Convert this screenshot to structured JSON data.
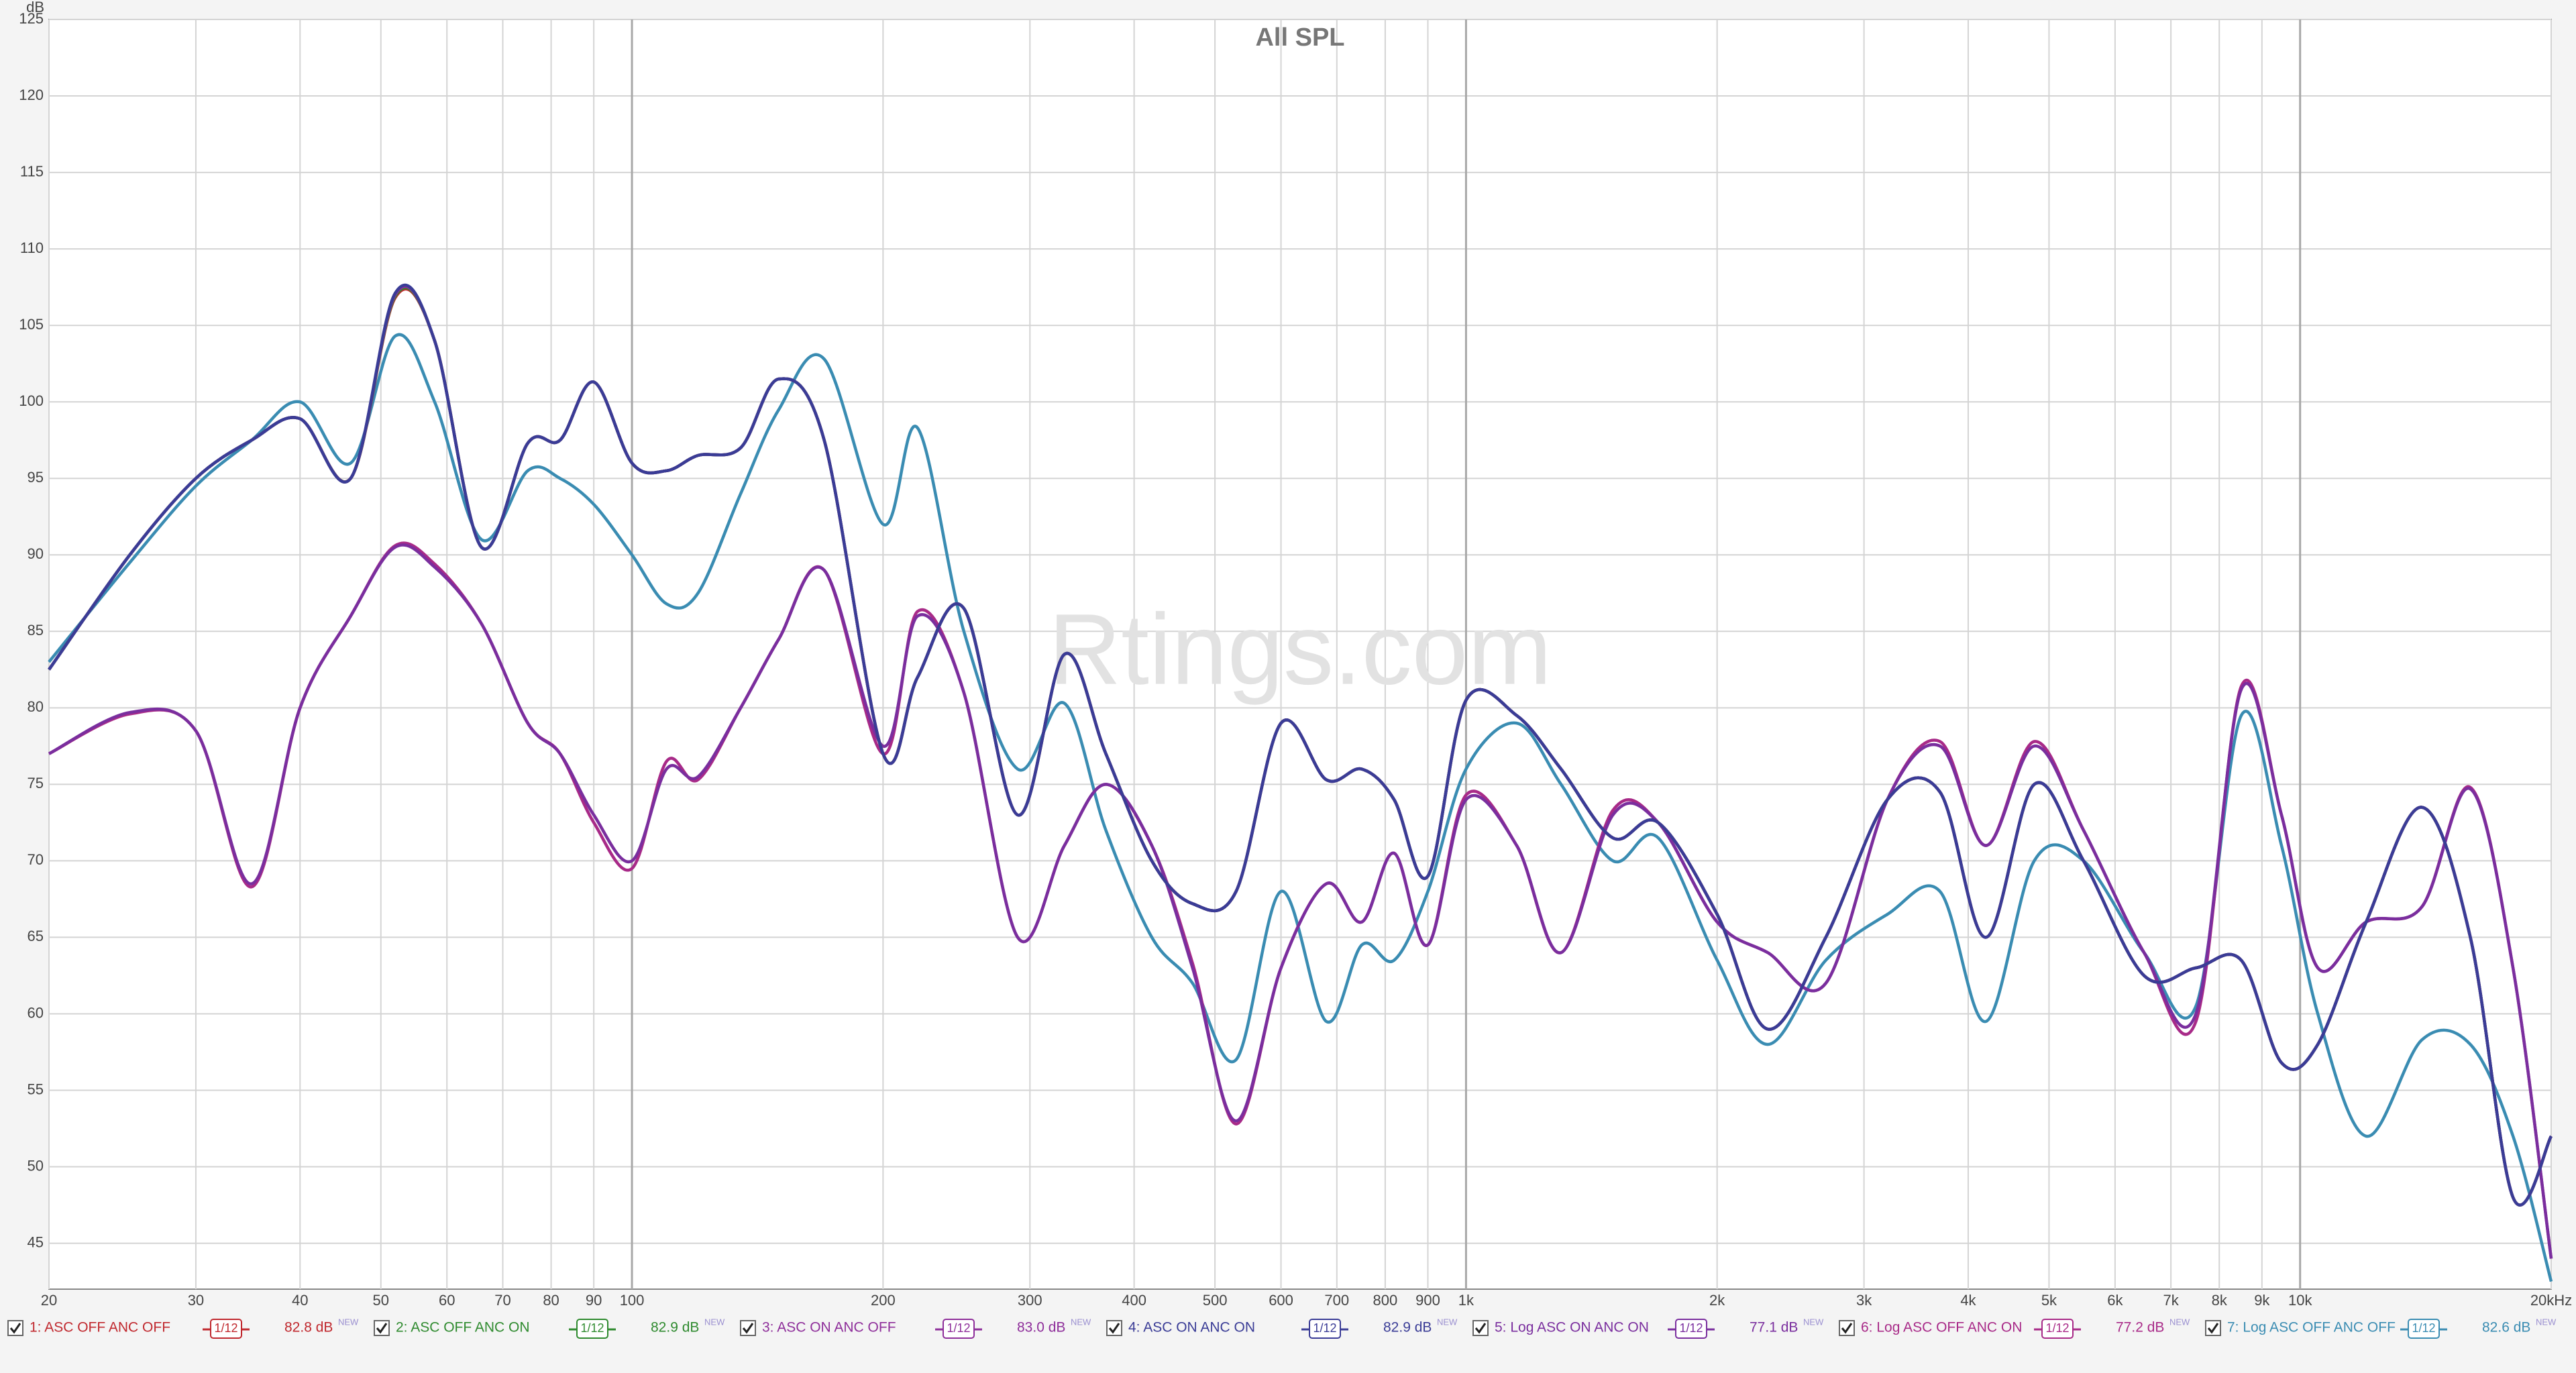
{
  "chart_data": {
    "type": "line",
    "title": "All SPL",
    "watermark": "Rtings.com",
    "y_unit": "dB",
    "log_x": true,
    "grid": true,
    "xlim": [
      20,
      20000
    ],
    "ylim": [
      42,
      125
    ],
    "xticks": [
      20,
      30,
      40,
      50,
      60,
      70,
      80,
      90,
      100,
      200,
      300,
      400,
      500,
      600,
      700,
      800,
      900,
      {
        "value": 1000,
        "label": "1k"
      },
      {
        "value": 2000,
        "label": "2k"
      },
      {
        "value": 3000,
        "label": "3k"
      },
      {
        "value": 4000,
        "label": "4k"
      },
      {
        "value": 5000,
        "label": "5k"
      },
      {
        "value": 6000,
        "label": "6k"
      },
      {
        "value": 7000,
        "label": "7k"
      },
      {
        "value": 8000,
        "label": "8k"
      },
      {
        "value": 9000,
        "label": "9k"
      },
      {
        "value": 10000,
        "label": "10k"
      },
      {
        "value": 20000,
        "label": "20kHz"
      }
    ],
    "yticks": [
      45,
      50,
      55,
      60,
      65,
      70,
      75,
      80,
      85,
      90,
      95,
      100,
      105,
      110,
      115,
      120,
      125
    ],
    "x": [
      20,
      25,
      30,
      35,
      40,
      46,
      52,
      58,
      66,
      75,
      82,
      90,
      100,
      110,
      120,
      135,
      150,
      170,
      200,
      220,
      250,
      290,
      330,
      370,
      420,
      470,
      530,
      600,
      680,
      750,
      820,
      900,
      1000,
      1150,
      1300,
      1500,
      1700,
      2000,
      2300,
      2700,
      3200,
      3700,
      4200,
      4800,
      5500,
      6500,
      7500,
      8500,
      9500,
      10500,
      12000,
      14000,
      16000,
      18000,
      20000
    ],
    "series": [
      {
        "name": "1: ASC OFF ANC OFF",
        "color": "#c0282e",
        "smoothing": "1/12",
        "level": "82.8 dB",
        "badge": "NEW",
        "values": [
          82.5,
          90,
          95,
          97.5,
          98.9,
          95,
          106.8,
          104,
          90.5,
          97.3,
          97.5,
          101.3,
          96,
          95.5,
          96.5,
          97,
          101.5,
          97.5,
          77,
          82,
          86.5,
          73,
          83.5,
          77,
          70,
          67.2,
          68,
          79,
          75.3,
          76,
          74,
          69,
          80.5,
          79.5,
          76,
          71.5,
          72.5,
          66.5,
          59,
          65,
          74,
          74.5,
          65,
          75,
          70,
          62.5,
          63,
          63.5,
          56.8,
          58,
          66,
          73.5,
          65,
          48,
          52
        ]
      },
      {
        "name": "2: ASC OFF ANC ON",
        "color": "#2e8a2e",
        "smoothing": "1/12",
        "level": "82.9 dB",
        "badge": "NEW",
        "values": [
          82.5,
          90,
          95,
          97.5,
          98.9,
          95,
          106.9,
          104,
          90.5,
          97.3,
          97.5,
          101.3,
          96,
          95.5,
          96.5,
          97,
          101.5,
          97.5,
          77,
          82,
          86.5,
          73,
          83.5,
          77,
          70,
          67.2,
          68,
          79,
          75.3,
          76,
          74,
          69,
          80.5,
          79.5,
          76,
          71.5,
          72.5,
          66.5,
          59,
          65,
          74,
          74.5,
          65,
          75,
          70,
          62.5,
          63,
          63.5,
          56.8,
          58,
          66,
          73.5,
          65,
          48,
          52
        ]
      },
      {
        "name": "3: ASC ON ANC OFF",
        "color": "#8e2e9a",
        "smoothing": "1/12",
        "level": "83.0 dB",
        "badge": "NEW",
        "values": [
          82.5,
          90,
          95,
          97.5,
          98.9,
          95,
          107,
          104,
          90.5,
          97.3,
          97.5,
          101.3,
          96,
          95.5,
          96.5,
          97,
          101.5,
          97.5,
          77,
          82,
          86.5,
          73,
          83.5,
          77,
          70,
          67.2,
          68,
          79,
          75.3,
          76,
          74,
          69,
          80.5,
          79.5,
          76,
          71.5,
          72.5,
          66.5,
          59,
          65,
          74,
          74.5,
          65,
          75,
          70,
          62.5,
          63,
          63.5,
          56.8,
          58,
          66,
          73.5,
          65,
          48,
          52
        ]
      },
      {
        "name": "4: ASC ON ANC ON",
        "color": "#3a3c96",
        "smoothing": "1/12",
        "level": "82.9 dB",
        "badge": "NEW",
        "values": [
          82.5,
          90,
          95,
          97.5,
          98.9,
          95,
          107.1,
          104,
          90.5,
          97.3,
          97.5,
          101.3,
          96,
          95.5,
          96.5,
          97,
          101.5,
          97.5,
          77,
          82,
          86.5,
          73,
          83.5,
          77,
          70,
          67.2,
          68,
          79,
          75.3,
          76,
          74,
          69,
          80.5,
          79.5,
          76,
          71.5,
          72.5,
          66.5,
          59,
          65,
          74,
          74.5,
          65,
          75,
          70,
          62.5,
          63,
          63.5,
          56.8,
          58,
          66,
          73.5,
          65,
          48,
          52
        ]
      },
      {
        "name": "5: Log ASC ON ANC ON",
        "color": "#7a2e9e",
        "smoothing": "1/12",
        "level": "77.1 dB",
        "badge": "NEW",
        "values": [
          77,
          79.7,
          78.5,
          68.5,
          80,
          86,
          90.5,
          89.2,
          85.5,
          79,
          77,
          73,
          70,
          76,
          75.5,
          80,
          84.5,
          89,
          77.5,
          86,
          81,
          65,
          71,
          75,
          71,
          63,
          53,
          63,
          68.5,
          66,
          70.5,
          64.5,
          74,
          71,
          64,
          73,
          72.5,
          66,
          64,
          62,
          74,
          77.5,
          71,
          77.5,
          72,
          64,
          60,
          81.2,
          73,
          63,
          66,
          67,
          74.7,
          63,
          44
        ]
      },
      {
        "name": "6: Log ASC OFF ANC ON",
        "color": "#a82a88",
        "smoothing": "1/12",
        "level": "77.2 dB",
        "badge": "NEW",
        "values": [
          77,
          79.6,
          78.5,
          68.3,
          80,
          86,
          90.6,
          89.4,
          85.5,
          79,
          77,
          72.5,
          69.5,
          76.5,
          75.3,
          80,
          84.5,
          89,
          77,
          86.3,
          81,
          65,
          71,
          75,
          71,
          63.3,
          52.8,
          63,
          68.5,
          66,
          70.5,
          64.5,
          74.3,
          71,
          64,
          73.3,
          72.5,
          66,
          64,
          62,
          74,
          77.8,
          71,
          77.8,
          72,
          64,
          59.5,
          81.4,
          73,
          63,
          66,
          67,
          74.8,
          63,
          44
        ]
      },
      {
        "name": "7: Log ASC OFF ANC OFF",
        "color": "#3a8cb2",
        "smoothing": "1/12",
        "level": "82.6 dB",
        "badge": "NEW",
        "values": [
          83,
          89.5,
          94.5,
          97.5,
          100,
          96,
          104.3,
          100,
          91,
          95.5,
          95,
          93.3,
          90,
          86.8,
          87.5,
          94,
          99.5,
          102.8,
          92,
          98.3,
          85,
          76,
          80.3,
          72,
          65,
          62,
          57,
          68,
          59.5,
          64.5,
          63.5,
          68,
          76,
          79,
          75,
          70,
          71.5,
          63.5,
          58,
          63.5,
          66.5,
          68,
          59.5,
          70,
          70,
          64,
          60.5,
          79.5,
          71,
          60,
          52,
          58.3,
          58,
          52,
          42.5
        ]
      }
    ]
  }
}
